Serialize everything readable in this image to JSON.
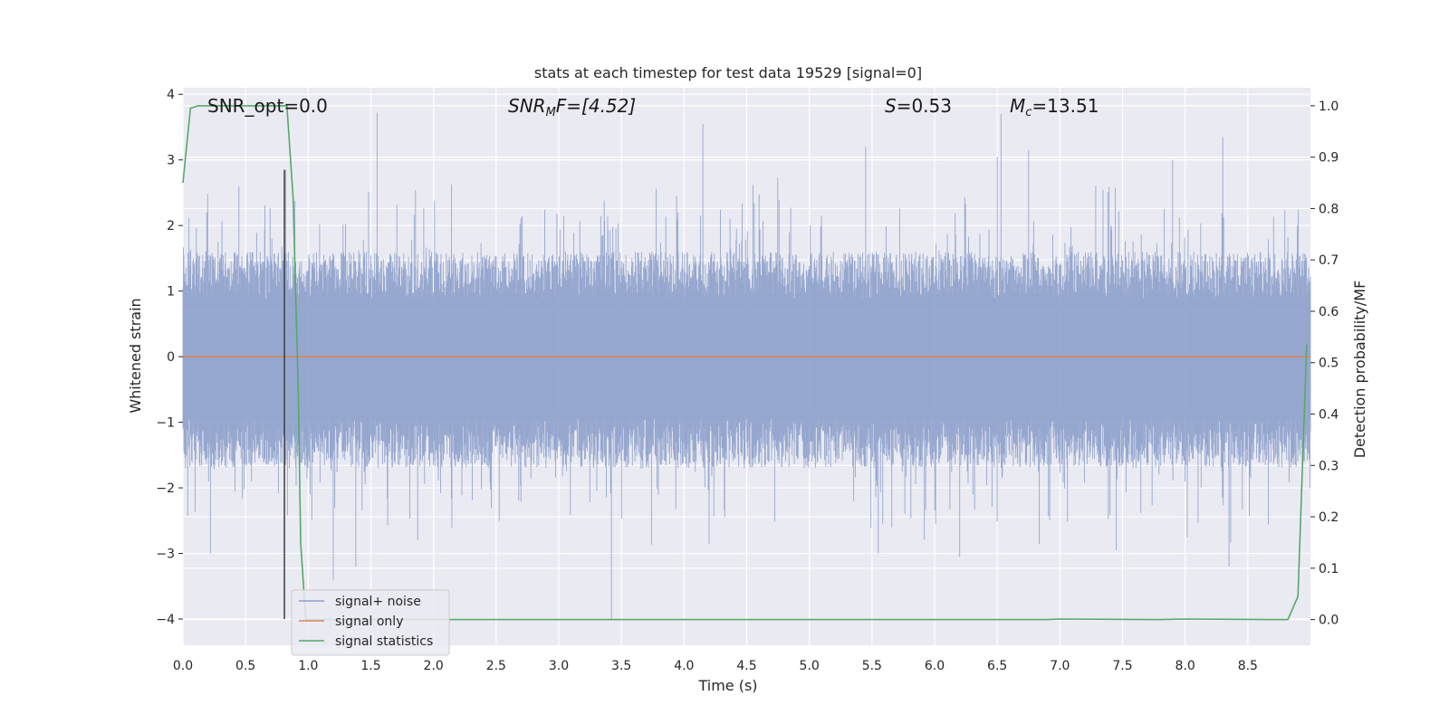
{
  "chart_data": {
    "type": "line",
    "title": "stats at each timestep for test data 19529 [signal=0]",
    "xlabel": "Time (s)",
    "ylabel": "Whitened strain",
    "y2label": "Detection probability/MF",
    "xlim": [
      0,
      9.0
    ],
    "ylim": [
      -4.4,
      4.1
    ],
    "y2lim": [
      -0.05,
      1.035
    ],
    "xticks": [
      "0.0",
      "0.5",
      "1.0",
      "1.5",
      "2.0",
      "2.5",
      "3.0",
      "3.5",
      "4.0",
      "4.5",
      "5.0",
      "5.5",
      "6.0",
      "6.5",
      "7.0",
      "7.5",
      "8.0",
      "8.5"
    ],
    "yticks": [
      "−4",
      "−3",
      "−2",
      "−1",
      "0",
      "1",
      "2",
      "3",
      "4"
    ],
    "y2ticks": [
      "0.0",
      "0.1",
      "0.2",
      "0.3",
      "0.4",
      "0.5",
      "0.6",
      "0.7",
      "0.8",
      "0.9",
      "1.0"
    ],
    "grid": true,
    "legend_position": "lower-left",
    "annotations": {
      "snr_opt": "SNR_opt=0.0",
      "snr_mf_prefix": "SNR",
      "snr_mf_sub": "M",
      "snr_mf_suffix": "F=[4.52]",
      "s_prefix": "S",
      "s_value": "=0.53",
      "mc_prefix": "M",
      "mc_sub": "c",
      "mc_value": "=13.51"
    },
    "vline_x": 0.81,
    "vline_ylim": [
      -4.0,
      2.85
    ],
    "series": [
      {
        "name": "signal+ noise",
        "color": "#8da0cb",
        "description_kind": "noise",
        "envelope": {
          "typical_low": -1.7,
          "typical_high": 1.6
        },
        "peaks": [
          {
            "x": 1.55,
            "y": 3.72
          },
          {
            "x": 4.15,
            "y": 3.55
          },
          {
            "x": 5.45,
            "y": 3.2
          },
          {
            "x": 6.5,
            "y": 3.05
          },
          {
            "x": 6.53,
            "y": 3.7
          },
          {
            "x": 6.75,
            "y": 3.15
          },
          {
            "x": 8.3,
            "y": 3.35
          },
          {
            "x": 0.82,
            "y": 2.85
          },
          {
            "x": 7.9,
            "y": 3.0
          },
          {
            "x": 3.42,
            "y": -4.0
          },
          {
            "x": 0.22,
            "y": -3.0
          },
          {
            "x": 1.2,
            "y": -3.4
          },
          {
            "x": 1.38,
            "y": -3.2
          },
          {
            "x": 5.55,
            "y": -3.0
          },
          {
            "x": 6.2,
            "y": -3.05
          },
          {
            "x": 8.35,
            "y": -3.2
          },
          {
            "x": 7.45,
            "y": -2.95
          },
          {
            "x": 4.2,
            "y": -2.85
          }
        ]
      },
      {
        "name": "signal only",
        "color": "#dd8452",
        "x": [
          0,
          9.0
        ],
        "y": [
          0,
          0
        ]
      },
      {
        "name": "signal statistics",
        "color": "#55a868",
        "axis": "right",
        "x": [
          0.0,
          0.06,
          0.12,
          0.2,
          0.4,
          0.6,
          0.8,
          0.83,
          0.88,
          0.92,
          0.94,
          0.98,
          1.5,
          3.0,
          5.0,
          6.9,
          7.0,
          7.8,
          8.0,
          8.7,
          8.82,
          8.9,
          8.97
        ],
        "y": [
          0.85,
          0.995,
          1.0,
          1.0,
          1.0,
          1.0,
          1.0,
          1.0,
          0.82,
          0.45,
          0.15,
          0.0,
          0.0,
          0.0,
          0.0,
          0.0,
          0.001,
          0.0,
          0.001,
          0.0,
          0.0,
          0.045,
          0.535
        ]
      }
    ]
  }
}
